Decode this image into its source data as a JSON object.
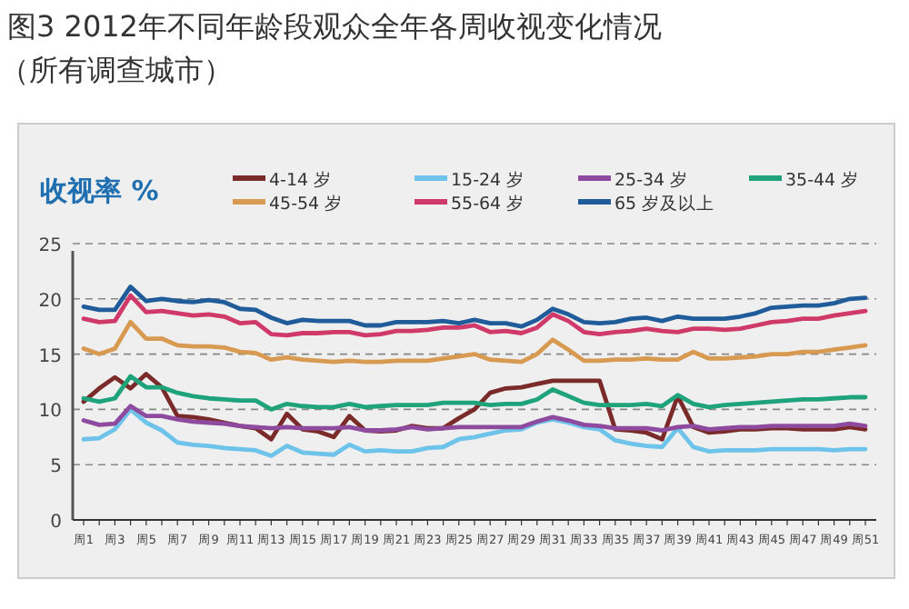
{
  "chart_data": {
    "type": "line",
    "title": "图3 2012年不同年龄段观众全年各周收视变化情况",
    "subtitle": "（所有调查城市）",
    "ylabel": "收视率 %",
    "categories": [
      "周1",
      null,
      "周3",
      null,
      "周5",
      null,
      "周7",
      null,
      "周9",
      null,
      "周11",
      null,
      "周13",
      null,
      "周15",
      null,
      "周17",
      null,
      "周19",
      null,
      "周21",
      null,
      "周23",
      null,
      "周25",
      null,
      "周27",
      null,
      "周29",
      null,
      "周31",
      null,
      "周33",
      null,
      "周35",
      null,
      "周37",
      null,
      "周39",
      null,
      "周41",
      null,
      "周43",
      null,
      "周45",
      null,
      "周47",
      null,
      "周49",
      null,
      "周51"
    ],
    "ylim": [
      0,
      25
    ],
    "yticks": [
      0,
      5,
      10,
      15,
      20,
      25
    ],
    "grid": "y",
    "legend": "top",
    "marker": "none",
    "line_style": "solid",
    "series": [
      {
        "name": "4-14 岁",
        "color": "#7b2a2a",
        "values": [
          10.7,
          11.9,
          12.9,
          11.9,
          13.2,
          12.0,
          9.4,
          9.3,
          9.1,
          8.8,
          8.5,
          8.3,
          7.3,
          9.6,
          8.2,
          8.0,
          7.5,
          9.4,
          8.1,
          8.0,
          8.1,
          8.5,
          8.3,
          8.3,
          9.2,
          10.0,
          11.5,
          11.9,
          12.0,
          12.3,
          12.6,
          12.6,
          12.6,
          12.6,
          8.2,
          8.1,
          7.9,
          7.3,
          11.2,
          8.4,
          7.9,
          8.0,
          8.2,
          8.2,
          8.3,
          8.3,
          8.2,
          8.2,
          8.2,
          8.4,
          8.2
        ]
      },
      {
        "name": "15-24 岁",
        "color": "#6ec3ea",
        "values": [
          7.3,
          7.4,
          8.2,
          10.0,
          8.8,
          8.1,
          7.0,
          6.8,
          6.7,
          6.5,
          6.4,
          6.3,
          5.8,
          6.7,
          6.1,
          6.0,
          5.9,
          6.8,
          6.2,
          6.3,
          6.2,
          6.2,
          6.5,
          6.6,
          7.3,
          7.5,
          7.8,
          8.1,
          8.2,
          8.8,
          9.1,
          8.8,
          8.4,
          8.2,
          7.2,
          6.9,
          6.7,
          6.6,
          8.3,
          6.6,
          6.2,
          6.3,
          6.3,
          6.3,
          6.4,
          6.4,
          6.4,
          6.4,
          6.3,
          6.4,
          6.4
        ]
      },
      {
        "name": "25-34 岁",
        "color": "#8e4a9e",
        "values": [
          9.0,
          8.6,
          8.7,
          10.3,
          9.4,
          9.4,
          9.1,
          8.9,
          8.8,
          8.7,
          8.5,
          8.4,
          8.3,
          8.4,
          8.3,
          8.3,
          8.3,
          8.4,
          8.1,
          8.1,
          8.2,
          8.4,
          8.2,
          8.3,
          8.4,
          8.4,
          8.4,
          8.4,
          8.4,
          8.9,
          9.3,
          9.0,
          8.6,
          8.5,
          8.3,
          8.3,
          8.3,
          8.1,
          8.4,
          8.5,
          8.2,
          8.3,
          8.4,
          8.4,
          8.5,
          8.5,
          8.5,
          8.5,
          8.5,
          8.7,
          8.5
        ]
      },
      {
        "name": "35-44 岁",
        "color": "#1fa37a",
        "values": [
          11.0,
          10.7,
          11.0,
          13.0,
          12.0,
          12.0,
          11.5,
          11.2,
          11.0,
          10.9,
          10.8,
          10.8,
          10.0,
          10.5,
          10.3,
          10.2,
          10.2,
          10.5,
          10.2,
          10.3,
          10.4,
          10.4,
          10.4,
          10.6,
          10.6,
          10.6,
          10.4,
          10.5,
          10.5,
          10.9,
          11.8,
          11.2,
          10.6,
          10.4,
          10.4,
          10.4,
          10.5,
          10.3,
          11.3,
          10.5,
          10.2,
          10.4,
          10.5,
          10.6,
          10.7,
          10.8,
          10.9,
          10.9,
          11.0,
          11.1,
          11.1
        ]
      },
      {
        "name": "45-54 岁",
        "color": "#d89a50",
        "values": [
          15.5,
          15.0,
          15.5,
          17.9,
          16.4,
          16.4,
          15.8,
          15.7,
          15.7,
          15.6,
          15.2,
          15.1,
          14.5,
          14.7,
          14.5,
          14.4,
          14.3,
          14.4,
          14.3,
          14.3,
          14.4,
          14.4,
          14.4,
          14.6,
          14.8,
          15.0,
          14.5,
          14.4,
          14.3,
          15.0,
          16.3,
          15.4,
          14.4,
          14.4,
          14.5,
          14.5,
          14.6,
          14.5,
          14.5,
          15.2,
          14.6,
          14.6,
          14.7,
          14.8,
          15.0,
          15.0,
          15.2,
          15.2,
          15.4,
          15.6,
          15.8
        ]
      },
      {
        "name": "55-64 岁",
        "color": "#d03a6a",
        "values": [
          18.2,
          17.9,
          18.0,
          20.3,
          18.8,
          18.9,
          18.7,
          18.5,
          18.6,
          18.4,
          17.8,
          17.9,
          16.8,
          16.7,
          16.9,
          16.9,
          17.0,
          17.0,
          16.7,
          16.8,
          17.1,
          17.1,
          17.2,
          17.4,
          17.4,
          17.6,
          17.0,
          17.1,
          16.9,
          17.4,
          18.6,
          18.0,
          17.0,
          16.8,
          17.0,
          17.1,
          17.3,
          17.1,
          17.0,
          17.3,
          17.3,
          17.2,
          17.3,
          17.6,
          17.9,
          18.0,
          18.2,
          18.2,
          18.5,
          18.7,
          18.9
        ]
      },
      {
        "name": "65 岁及以上",
        "color": "#1f5c99",
        "values": [
          19.3,
          19.0,
          19.0,
          21.1,
          19.8,
          20.0,
          19.8,
          19.7,
          19.9,
          19.7,
          19.1,
          19.0,
          18.3,
          17.8,
          18.1,
          18.0,
          18.0,
          18.0,
          17.6,
          17.6,
          17.9,
          17.9,
          17.9,
          18.0,
          17.8,
          18.1,
          17.8,
          17.8,
          17.5,
          18.1,
          19.1,
          18.6,
          17.9,
          17.8,
          17.9,
          18.2,
          18.3,
          18.0,
          18.4,
          18.2,
          18.2,
          18.2,
          18.4,
          18.7,
          19.2,
          19.3,
          19.4,
          19.4,
          19.6,
          20.0,
          20.1
        ]
      }
    ]
  }
}
